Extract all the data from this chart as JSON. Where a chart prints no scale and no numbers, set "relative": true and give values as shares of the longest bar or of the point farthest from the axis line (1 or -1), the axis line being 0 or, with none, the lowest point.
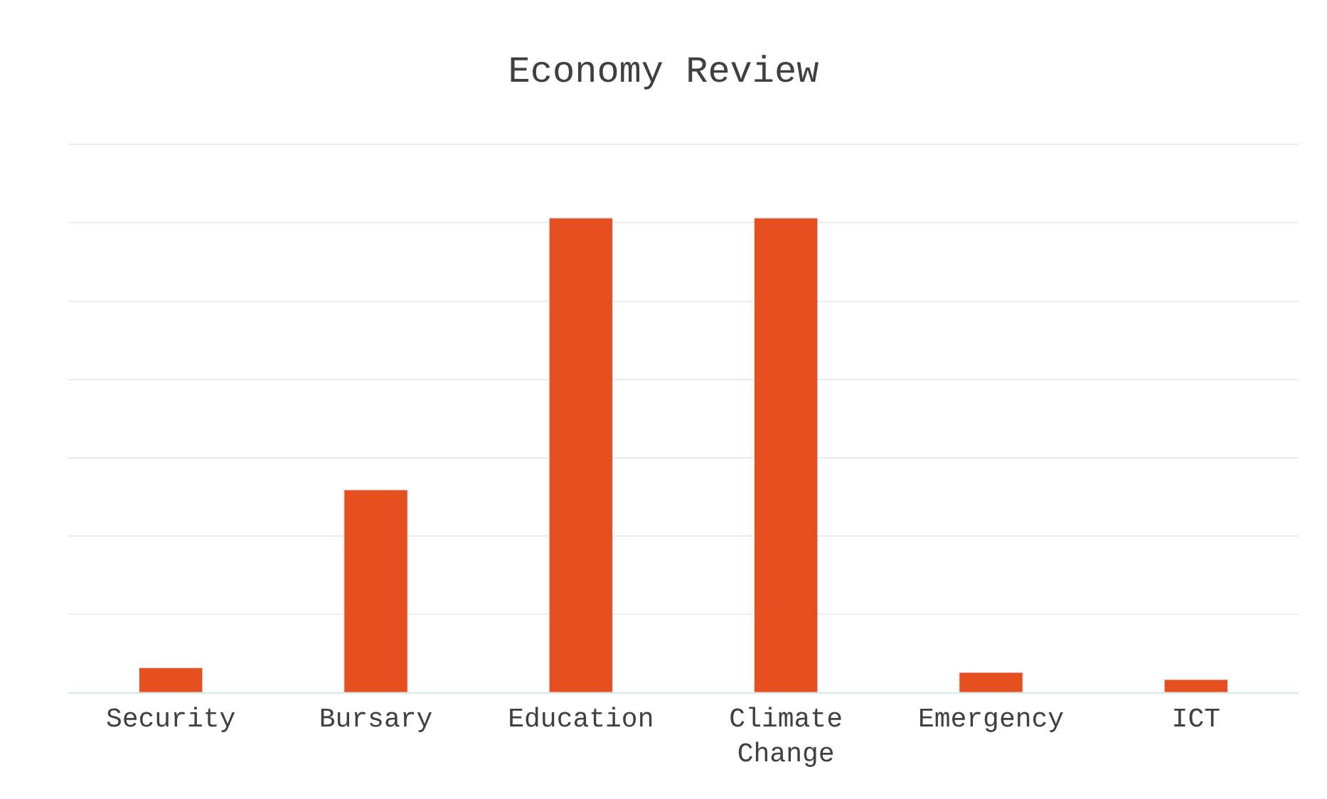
{
  "chart_data": {
    "type": "bar",
    "title": "Economy Review",
    "relative": true,
    "grid": "y",
    "color": "#e5501e",
    "categories": [
      "Security",
      "Bursary",
      "Education",
      "Climate Change",
      "Emergency",
      "ICT"
    ],
    "values": [
      0.052,
      0.427,
      1,
      1,
      0.042,
      0.027
    ]
  }
}
